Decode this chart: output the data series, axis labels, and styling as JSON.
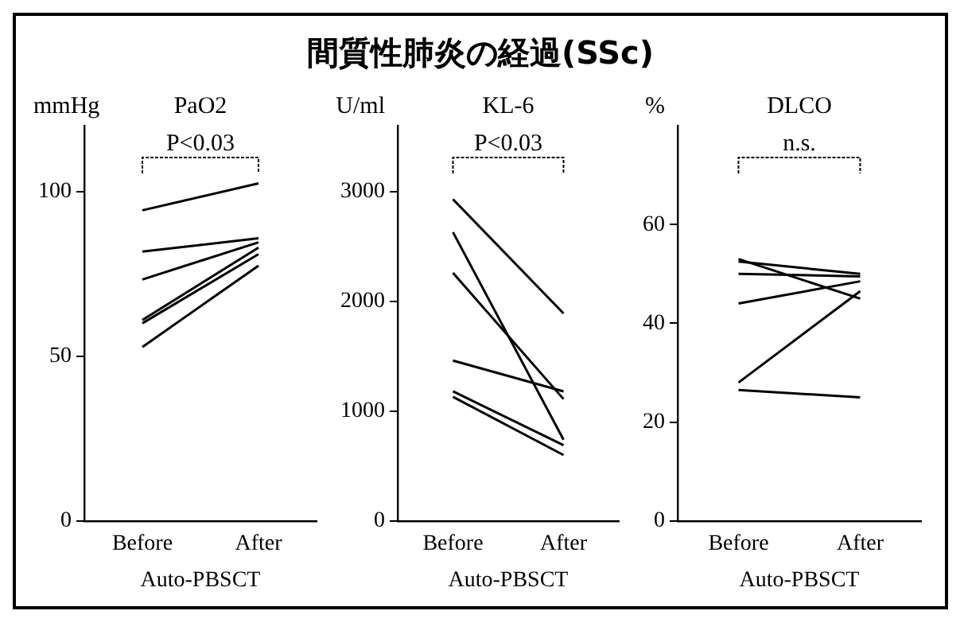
{
  "chart_data": [
    {
      "type": "other",
      "title": "間質性肺炎の経過(SSc)"
    },
    {
      "type": "line",
      "title": "PaO2",
      "ylabel": "mmHg",
      "xlabel": "Auto-PBSCT",
      "categories": [
        "Before",
        "After"
      ],
      "ylim": [
        0,
        120
      ],
      "yticks": [
        0,
        50,
        100
      ],
      "marker": "none",
      "grid": false,
      "annotations": [
        "P<0.03"
      ],
      "series": [
        {
          "color": "#000000",
          "values": [
            94.3,
            102.5
          ]
        },
        {
          "color": "#000000",
          "values": [
            81.8,
            85.8
          ]
        },
        {
          "color": "#000000",
          "values": [
            73.3,
            84.6
          ]
        },
        {
          "color": "#000000",
          "values": [
            61,
            83
          ]
        },
        {
          "color": "#000000",
          "values": [
            60,
            81
          ]
        },
        {
          "color": "#000000",
          "values": [
            52.8,
            77.5
          ]
        }
      ]
    },
    {
      "type": "line",
      "title": "KL-6",
      "ylabel": "U/ml",
      "xlabel": "Auto-PBSCT",
      "categories": [
        "Before",
        "After"
      ],
      "ylim": [
        0,
        3600
      ],
      "yticks": [
        0,
        1000,
        2000,
        3000
      ],
      "marker": "none",
      "grid": false,
      "annotations": [
        "P<0.03"
      ],
      "series": [
        {
          "color": "#000000",
          "values": [
            2930,
            1890
          ]
        },
        {
          "color": "#000000",
          "values": [
            2630,
            740
          ]
        },
        {
          "color": "#000000",
          "values": [
            2260,
            1110
          ]
        },
        {
          "color": "#000000",
          "values": [
            1460,
            1180
          ]
        },
        {
          "color": "#000000",
          "values": [
            1180,
            690
          ]
        },
        {
          "color": "#000000",
          "values": [
            1130,
            600
          ]
        }
      ]
    },
    {
      "type": "line",
      "title": "DLCO",
      "ylabel": "%",
      "xlabel": "Auto-PBSCT",
      "categories": [
        "Before",
        "After"
      ],
      "ylim": [
        0,
        80
      ],
      "yticks": [
        0,
        20,
        40,
        60
      ],
      "marker": "none",
      "grid": false,
      "annotations": [
        "n.s."
      ],
      "series": [
        {
          "color": "#000000",
          "values": [
            53,
            45
          ]
        },
        {
          "color": "#000000",
          "values": [
            52.5,
            50
          ]
        },
        {
          "color": "#000000",
          "values": [
            50,
            49.5
          ]
        },
        {
          "color": "#000000",
          "values": [
            44,
            48.5
          ]
        },
        {
          "color": "#000000",
          "values": [
            28,
            46.5
          ]
        },
        {
          "color": "#000000",
          "values": [
            26.5,
            25
          ]
        }
      ]
    }
  ]
}
